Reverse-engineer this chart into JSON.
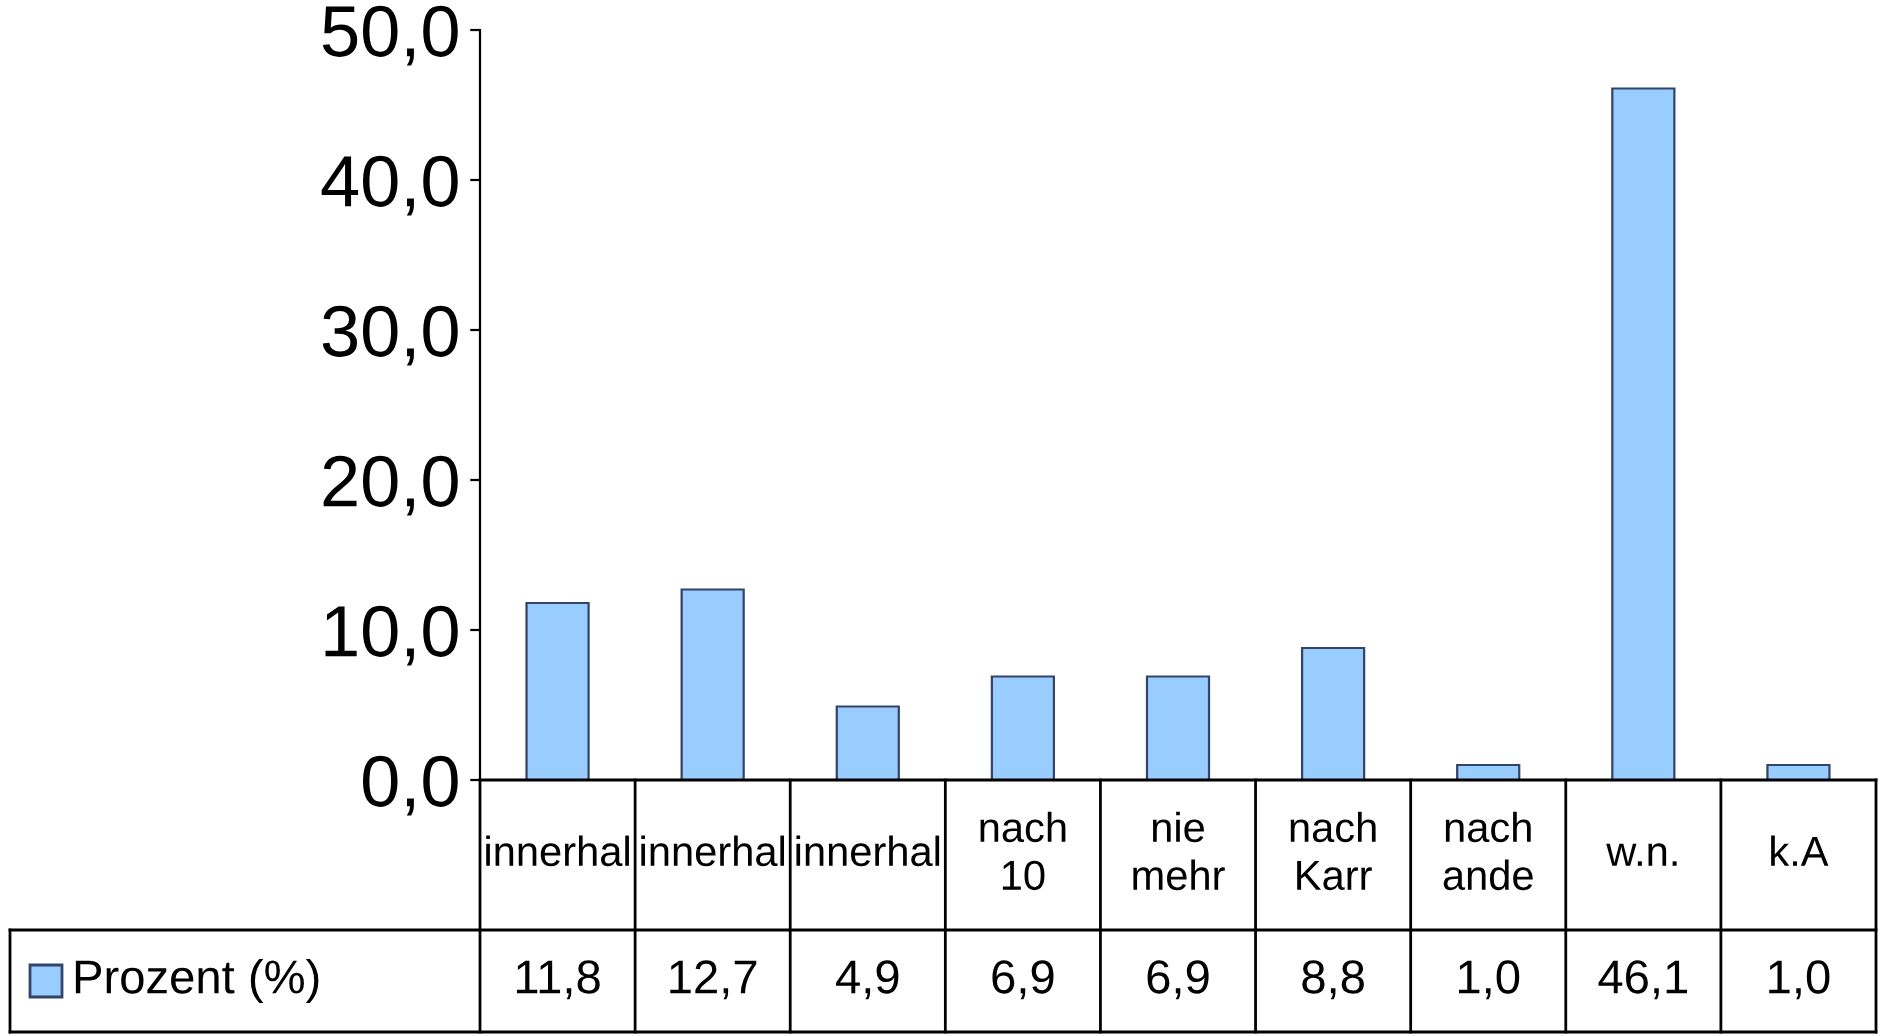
{
  "chart_data": {
    "type": "bar",
    "categories": [
      "innerhal",
      "innerhal",
      "innerhal",
      "nach 10",
      "nie mehr",
      "nach Karr",
      "nach ande",
      "w.n.",
      "k.A"
    ],
    "series": [
      {
        "name": "Prozent (%)",
        "color": "#99ccff",
        "values": [
          11.8,
          12.7,
          4.9,
          6.9,
          6.9,
          8.8,
          1.0,
          46.1,
          1.0
        ],
        "value_labels": [
          "11,8",
          "12,7",
          "4,9",
          "6,9",
          "6,9",
          "8,8",
          "1,0",
          "46,1",
          "1,0"
        ]
      }
    ],
    "ylim": [
      0,
      50
    ],
    "yticks": [
      {
        "value": 0,
        "label": "0,0"
      },
      {
        "value": 10,
        "label": "10,0"
      },
      {
        "value": 20,
        "label": "20,0"
      },
      {
        "value": 30,
        "label": "30,0"
      },
      {
        "value": 40,
        "label": "40,0"
      },
      {
        "value": 50,
        "label": "50,0"
      }
    ],
    "grid": false,
    "legend": "bottom left"
  }
}
